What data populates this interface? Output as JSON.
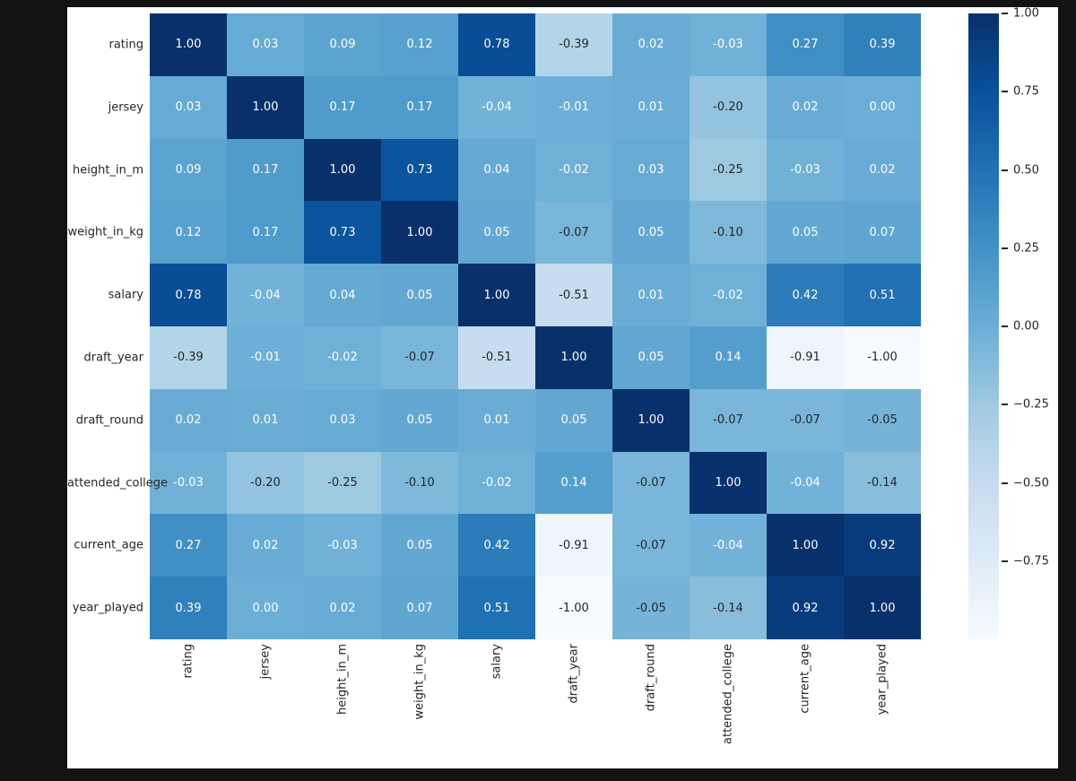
{
  "window": {
    "background_color": "#131313",
    "figure_background_color": "#ffffff"
  },
  "chart_data": {
    "type": "heatmap",
    "description": "Correlation matrix heatmap of player attributes",
    "x_tick_labels": [
      "rating",
      "jersey",
      "height_in_m",
      "weight_in_kg",
      "salary",
      "draft_year",
      "draft_round",
      "attended_college",
      "current_age",
      "year_played"
    ],
    "y_tick_labels": [
      "rating",
      "jersey",
      "height_in_m",
      "weight_in_kg",
      "salary",
      "draft_year",
      "draft_round",
      "attended_college",
      "current_age",
      "year_played"
    ],
    "matrix": [
      [
        1.0,
        0.03,
        0.09,
        0.12,
        0.78,
        -0.39,
        0.02,
        -0.03,
        0.27,
        0.39
      ],
      [
        0.03,
        1.0,
        0.17,
        0.17,
        -0.04,
        -0.01,
        0.01,
        -0.2,
        0.02,
        0.0
      ],
      [
        0.09,
        0.17,
        1.0,
        0.73,
        0.04,
        -0.02,
        0.03,
        -0.25,
        -0.03,
        0.02
      ],
      [
        0.12,
        0.17,
        0.73,
        1.0,
        0.05,
        -0.07,
        0.05,
        -0.1,
        0.05,
        0.07
      ],
      [
        0.78,
        -0.04,
        0.04,
        0.05,
        1.0,
        -0.51,
        0.01,
        -0.02,
        0.42,
        0.51
      ],
      [
        -0.39,
        -0.01,
        -0.02,
        -0.07,
        -0.51,
        1.0,
        0.05,
        0.14,
        -0.91,
        -1.0
      ],
      [
        0.02,
        0.01,
        0.03,
        0.05,
        0.01,
        0.05,
        1.0,
        -0.07,
        -0.07,
        -0.05
      ],
      [
        -0.03,
        -0.2,
        -0.25,
        -0.1,
        -0.02,
        0.14,
        -0.07,
        1.0,
        -0.04,
        -0.14
      ],
      [
        0.27,
        0.02,
        -0.03,
        0.05,
        0.42,
        -0.91,
        -0.07,
        -0.04,
        1.0,
        0.92
      ],
      [
        0.39,
        0.0,
        0.02,
        0.07,
        0.51,
        -1.0,
        -0.05,
        -0.14,
        0.92,
        1.0
      ]
    ],
    "vmin": -1.0,
    "vmax": 1.0,
    "value_format": ".2f",
    "grid": false,
    "colormap": "Blues",
    "colormap_colors": [
      "#f7fbff",
      "#deebf7",
      "#c6dbef",
      "#9ecae1",
      "#6baed6",
      "#4292c6",
      "#2171b5",
      "#08519c",
      "#08306b"
    ],
    "annotation_colors": {
      "light": "#ffffff",
      "dark": "#262626"
    },
    "luminance_threshold": 0.405,
    "colorbar": {
      "position": "right",
      "ticks": [
        {
          "value": 1.0,
          "label": "1.00"
        },
        {
          "value": 0.75,
          "label": "0.75"
        },
        {
          "value": 0.5,
          "label": "0.50"
        },
        {
          "value": 0.25,
          "label": "0.25"
        },
        {
          "value": 0.0,
          "label": "0.00"
        },
        {
          "value": -0.25,
          "label": "−0.25"
        },
        {
          "value": -0.5,
          "label": "−0.50"
        },
        {
          "value": -0.75,
          "label": "−0.75"
        }
      ]
    }
  }
}
